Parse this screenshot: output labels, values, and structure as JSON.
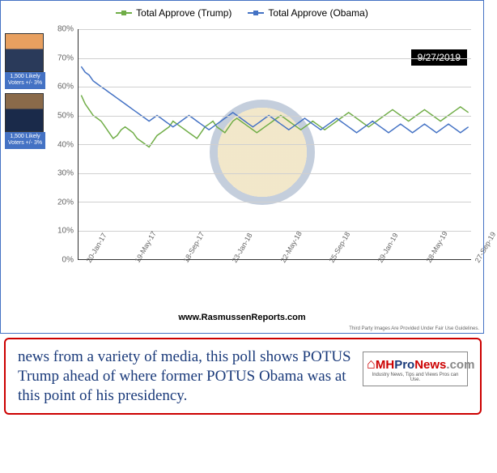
{
  "chart": {
    "type": "line",
    "title": "",
    "date_badge": "9/27/2019",
    "legend": [
      {
        "label": "Total Approve (Trump)",
        "color": "#70ad47"
      },
      {
        "label": "Total Approve (Obama)",
        "color": "#4472c4"
      }
    ],
    "y_axis": {
      "min": 0,
      "max": 80,
      "step": 10,
      "unit": "%",
      "ticks": [
        "0%",
        "10%",
        "20%",
        "30%",
        "40%",
        "50%",
        "60%",
        "70%",
        "80%"
      ]
    },
    "x_axis": {
      "ticks": [
        "20-Jan-17",
        "19-May-17",
        "18-Sep-17",
        "23-Jan-18",
        "22-May-18",
        "25-Sep-18",
        "29-Jan-19",
        "28-May-19",
        "27-Sep-19"
      ]
    },
    "series": [
      {
        "name": "Total Approve (Trump)",
        "color": "#70ad47",
        "marker": "square",
        "line_width": 1.5,
        "values": [
          57,
          54,
          52,
          50,
          49,
          48,
          46,
          44,
          42,
          43,
          45,
          46,
          45,
          44,
          42,
          41,
          40,
          39,
          41,
          43,
          44,
          45,
          46,
          48,
          47,
          46,
          45,
          44,
          43,
          42,
          44,
          46,
          47,
          48,
          46,
          45,
          44,
          46,
          48,
          49,
          48,
          47,
          46,
          45,
          44,
          45,
          46,
          47,
          48,
          49,
          50,
          49,
          48,
          47,
          46,
          45,
          46,
          47,
          48,
          47,
          46,
          45,
          46,
          47,
          48,
          49,
          50,
          51,
          50,
          49,
          48,
          47,
          46,
          47,
          48,
          49,
          50,
          51,
          52,
          51,
          50,
          49,
          48,
          49,
          50,
          51,
          52,
          51,
          50,
          49,
          48,
          49,
          50,
          51,
          52,
          53,
          52,
          51
        ]
      },
      {
        "name": "Total Approve (Obama)",
        "color": "#4472c4",
        "marker": "square",
        "line_width": 1.5,
        "values": [
          67,
          65,
          64,
          62,
          61,
          60,
          59,
          58,
          57,
          56,
          55,
          54,
          53,
          52,
          51,
          50,
          49,
          48,
          49,
          50,
          49,
          48,
          47,
          46,
          47,
          48,
          49,
          50,
          49,
          48,
          47,
          46,
          45,
          46,
          47,
          48,
          49,
          50,
          51,
          50,
          49,
          48,
          47,
          46,
          47,
          48,
          49,
          50,
          49,
          48,
          47,
          46,
          45,
          46,
          47,
          48,
          49,
          48,
          47,
          46,
          45,
          46,
          47,
          48,
          49,
          48,
          47,
          46,
          45,
          44,
          45,
          46,
          47,
          48,
          47,
          46,
          45,
          44,
          45,
          46,
          47,
          46,
          45,
          44,
          45,
          46,
          47,
          46,
          45,
          44,
          45,
          46,
          47,
          46,
          45,
          44,
          45,
          46
        ]
      }
    ],
    "photos": [
      {
        "name": "Trump",
        "voter_info": "1,500 Likely Voters +/- 3%"
      },
      {
        "name": "Obama",
        "voter_info": "1,500 Likely Voters +/- 3%"
      }
    ],
    "background_color": "#ffffff",
    "grid_color": "#d0d0d0",
    "source": "www.RasmussenReports.com",
    "fair_use": "Third Party Images Are Provided Under Fair Use Guidelines."
  },
  "caption": {
    "text": "news from a variety of media, this poll shows POTUS Trump ahead of where former POTUS Obama was at this point of his presidency.",
    "text_color": "#1a3a7a",
    "border_color": "#c00",
    "logo": {
      "text_mh": "MH",
      "text_pro": "Pro",
      "text_news": "News",
      "text_com": ".com",
      "tagline": "Industry News, Tips and Views Pros can Use."
    }
  }
}
